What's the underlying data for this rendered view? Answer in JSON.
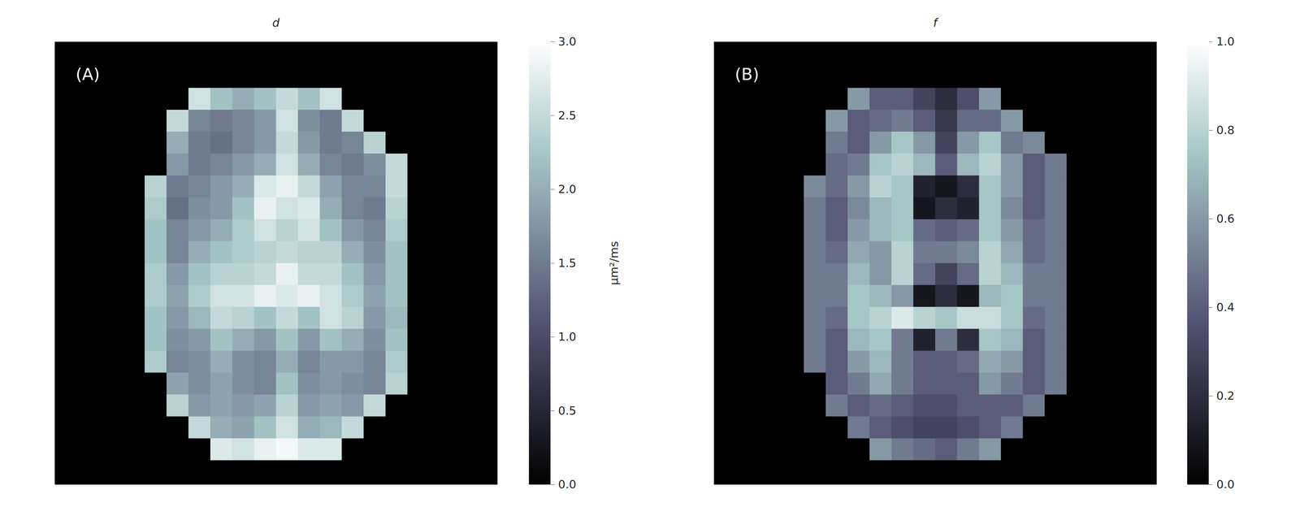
{
  "chart_data": [
    {
      "type": "heatmap",
      "title": "d",
      "annotations": [
        "(A)"
      ],
      "tick_labels": false,
      "colorbar": {
        "label": "μm²/ms",
        "lim": [
          0,
          3
        ],
        "ticks": [
          {
            "value": 0,
            "label": "0.0"
          },
          {
            "value": 0.5,
            "label": "0.5"
          },
          {
            "value": 1,
            "label": "1.0"
          },
          {
            "value": 1.5,
            "label": "1.5"
          },
          {
            "value": 2,
            "label": "2.0"
          },
          {
            "value": 2.5,
            "label": "2.5"
          },
          {
            "value": 3,
            "label": "3.0"
          }
        ]
      },
      "cells": [
        [
          0,
          0,
          0,
          0,
          0,
          0,
          0,
          0,
          0,
          0,
          0,
          0,
          0,
          0,
          0,
          0,
          0,
          0,
          0,
          0
        ],
        [
          0,
          0,
          0,
          0,
          0,
          0,
          0,
          0,
          0,
          0,
          0,
          0,
          0,
          0,
          0,
          0,
          0,
          0,
          0,
          0
        ],
        [
          0,
          0,
          0,
          0,
          0,
          0,
          2.6,
          2.2,
          2.0,
          2.2,
          2.5,
          2.2,
          2.6,
          0,
          0,
          0,
          0,
          0,
          0,
          0
        ],
        [
          0,
          0,
          0,
          0,
          0,
          2.5,
          1.6,
          1.5,
          1.6,
          1.8,
          2.6,
          1.7,
          1.5,
          2.5,
          0,
          0,
          0,
          0,
          0,
          0
        ],
        [
          0,
          0,
          0,
          0,
          0,
          2.0,
          1.5,
          1.4,
          1.6,
          1.8,
          2.5,
          1.8,
          1.5,
          1.6,
          2.4,
          0,
          0,
          0,
          0,
          0
        ],
        [
          0,
          0,
          0,
          0,
          0,
          1.8,
          1.5,
          1.6,
          1.8,
          2.0,
          2.6,
          2.0,
          1.6,
          1.5,
          1.7,
          2.5,
          0,
          0,
          0,
          0
        ],
        [
          0,
          0,
          0,
          0,
          2.4,
          1.5,
          1.6,
          1.8,
          2.0,
          2.7,
          2.8,
          2.5,
          1.9,
          1.6,
          1.6,
          2.5,
          0,
          0,
          0,
          0
        ],
        [
          0,
          0,
          0,
          0,
          2.3,
          1.4,
          1.7,
          1.8,
          2.2,
          2.8,
          2.6,
          2.7,
          2.0,
          1.6,
          1.5,
          2.4,
          0,
          0,
          0,
          0
        ],
        [
          0,
          0,
          0,
          0,
          2.2,
          1.6,
          1.8,
          2.0,
          2.3,
          2.6,
          2.4,
          2.6,
          2.2,
          1.8,
          1.6,
          2.3,
          0,
          0,
          0,
          0
        ],
        [
          0,
          0,
          0,
          0,
          2.2,
          1.6,
          2.0,
          2.2,
          2.3,
          2.4,
          2.5,
          2.4,
          2.4,
          2.0,
          1.7,
          2.2,
          0,
          0,
          0,
          0
        ],
        [
          0,
          0,
          0,
          0,
          2.3,
          1.8,
          2.2,
          2.4,
          2.4,
          2.5,
          2.8,
          2.5,
          2.5,
          2.2,
          1.8,
          2.2,
          0,
          0,
          0,
          0
        ],
        [
          0,
          0,
          0,
          0,
          2.3,
          1.9,
          2.3,
          2.6,
          2.6,
          2.8,
          2.7,
          2.8,
          2.6,
          2.3,
          1.9,
          2.2,
          0,
          0,
          0,
          0
        ],
        [
          0,
          0,
          0,
          0,
          2.2,
          1.8,
          2.1,
          2.5,
          2.4,
          2.2,
          2.5,
          2.2,
          2.6,
          2.4,
          1.8,
          2.1,
          0,
          0,
          0,
          0
        ],
        [
          0,
          0,
          0,
          0,
          2.2,
          1.7,
          1.8,
          2.2,
          2.0,
          1.8,
          2.2,
          1.8,
          2.2,
          2.0,
          1.7,
          2.2,
          0,
          0,
          0,
          0
        ],
        [
          0,
          0,
          0,
          0,
          2.3,
          1.6,
          1.7,
          2.0,
          1.7,
          1.6,
          2.0,
          1.6,
          1.8,
          1.8,
          1.6,
          2.3,
          0,
          0,
          0,
          0
        ],
        [
          0,
          0,
          0,
          0,
          0,
          1.9,
          1.7,
          1.9,
          1.7,
          1.6,
          2.2,
          1.7,
          1.8,
          1.7,
          1.6,
          2.4,
          0,
          0,
          0,
          0
        ],
        [
          0,
          0,
          0,
          0,
          0,
          2.4,
          1.8,
          1.9,
          1.8,
          1.9,
          2.4,
          1.8,
          1.9,
          1.8,
          2.5,
          0,
          0,
          0,
          0,
          0
        ],
        [
          0,
          0,
          0,
          0,
          0,
          0,
          2.5,
          2.0,
          1.9,
          2.2,
          2.6,
          2.0,
          2.1,
          2.5,
          0,
          0,
          0,
          0,
          0,
          0
        ],
        [
          0,
          0,
          0,
          0,
          0,
          0,
          0,
          2.7,
          2.6,
          2.8,
          2.9,
          2.7,
          2.7,
          0,
          0,
          0,
          0,
          0,
          0,
          0
        ],
        [
          0,
          0,
          0,
          0,
          0,
          0,
          0,
          0,
          0,
          0,
          0,
          0,
          0,
          0,
          0,
          0,
          0,
          0,
          0,
          0
        ]
      ]
    },
    {
      "type": "heatmap",
      "title": "f",
      "annotations": [
        "(B)"
      ],
      "tick_labels": false,
      "colorbar": {
        "lim": [
          0,
          1
        ],
        "ticks": [
          {
            "value": 0,
            "label": "0.0"
          },
          {
            "value": 0.2,
            "label": "0.2"
          },
          {
            "value": 0.4,
            "label": "0.4"
          },
          {
            "value": 0.6,
            "label": "0.6"
          },
          {
            "value": 0.8,
            "label": "0.8"
          },
          {
            "value": 1,
            "label": "1.0"
          }
        ]
      },
      "cells": [
        [
          0,
          0,
          0,
          0,
          0,
          0,
          0,
          0,
          0,
          0,
          0,
          0,
          0,
          0,
          0,
          0,
          0,
          0,
          0,
          0
        ],
        [
          0,
          0,
          0,
          0,
          0,
          0,
          0,
          0,
          0,
          0,
          0,
          0,
          0,
          0,
          0,
          0,
          0,
          0,
          0,
          0
        ],
        [
          0,
          0,
          0,
          0,
          0,
          0,
          0.6,
          0.4,
          0.4,
          0.3,
          0.2,
          0.35,
          0.6,
          0,
          0,
          0,
          0,
          0,
          0,
          0
        ],
        [
          0,
          0,
          0,
          0,
          0,
          0.6,
          0.4,
          0.45,
          0.5,
          0.4,
          0.25,
          0.45,
          0.45,
          0.6,
          0,
          0,
          0,
          0,
          0,
          0
        ],
        [
          0,
          0,
          0,
          0,
          0,
          0.5,
          0.4,
          0.6,
          0.75,
          0.6,
          0.3,
          0.6,
          0.75,
          0.5,
          0.55,
          0,
          0,
          0,
          0,
          0
        ],
        [
          0,
          0,
          0,
          0,
          0,
          0.45,
          0.5,
          0.75,
          0.8,
          0.7,
          0.4,
          0.7,
          0.8,
          0.6,
          0.4,
          0.5,
          0,
          0,
          0,
          0
        ],
        [
          0,
          0,
          0,
          0,
          0.55,
          0.45,
          0.6,
          0.8,
          0.75,
          0.15,
          0.1,
          0.2,
          0.75,
          0.6,
          0.4,
          0.5,
          0,
          0,
          0,
          0
        ],
        [
          0,
          0,
          0,
          0,
          0.5,
          0.4,
          0.55,
          0.7,
          0.75,
          0.1,
          0.2,
          0.15,
          0.75,
          0.55,
          0.4,
          0.5,
          0,
          0,
          0,
          0
        ],
        [
          0,
          0,
          0,
          0,
          0.5,
          0.4,
          0.6,
          0.7,
          0.75,
          0.45,
          0.4,
          0.45,
          0.75,
          0.6,
          0.45,
          0.5,
          0,
          0,
          0,
          0
        ],
        [
          0,
          0,
          0,
          0,
          0.5,
          0.45,
          0.65,
          0.6,
          0.8,
          0.5,
          0.5,
          0.55,
          0.8,
          0.65,
          0.45,
          0.5,
          0,
          0,
          0,
          0
        ],
        [
          0,
          0,
          0,
          0,
          0.5,
          0.5,
          0.7,
          0.6,
          0.8,
          0.45,
          0.3,
          0.45,
          0.8,
          0.7,
          0.5,
          0.5,
          0,
          0,
          0,
          0
        ],
        [
          0,
          0,
          0,
          0,
          0.5,
          0.5,
          0.75,
          0.7,
          0.6,
          0.1,
          0.2,
          0.1,
          0.7,
          0.75,
          0.5,
          0.5,
          0,
          0,
          0,
          0
        ],
        [
          0,
          0,
          0,
          0,
          0.5,
          0.45,
          0.75,
          0.8,
          0.9,
          0.8,
          0.75,
          0.85,
          0.85,
          0.75,
          0.45,
          0.5,
          0,
          0,
          0,
          0
        ],
        [
          0,
          0,
          0,
          0,
          0.5,
          0.4,
          0.7,
          0.75,
          0.5,
          0.15,
          0.5,
          0.2,
          0.75,
          0.7,
          0.4,
          0.5,
          0,
          0,
          0,
          0
        ],
        [
          0,
          0,
          0,
          0,
          0.5,
          0.4,
          0.6,
          0.7,
          0.5,
          0.4,
          0.4,
          0.45,
          0.65,
          0.6,
          0.4,
          0.5,
          0,
          0,
          0,
          0
        ],
        [
          0,
          0,
          0,
          0,
          0,
          0.4,
          0.5,
          0.65,
          0.5,
          0.4,
          0.4,
          0.4,
          0.6,
          0.5,
          0.4,
          0.5,
          0,
          0,
          0,
          0
        ],
        [
          0,
          0,
          0,
          0,
          0,
          0.5,
          0.4,
          0.45,
          0.4,
          0.35,
          0.35,
          0.4,
          0.4,
          0.4,
          0.5,
          0,
          0,
          0,
          0,
          0
        ],
        [
          0,
          0,
          0,
          0,
          0,
          0,
          0.5,
          0.4,
          0.35,
          0.3,
          0.3,
          0.35,
          0.4,
          0.5,
          0,
          0,
          0,
          0,
          0,
          0
        ],
        [
          0,
          0,
          0,
          0,
          0,
          0,
          0,
          0.6,
          0.5,
          0.45,
          0.4,
          0.5,
          0.6,
          0,
          0,
          0,
          0,
          0,
          0,
          0
        ],
        [
          0,
          0,
          0,
          0,
          0,
          0,
          0,
          0,
          0,
          0,
          0,
          0,
          0,
          0,
          0,
          0,
          0,
          0,
          0,
          0
        ]
      ]
    }
  ]
}
